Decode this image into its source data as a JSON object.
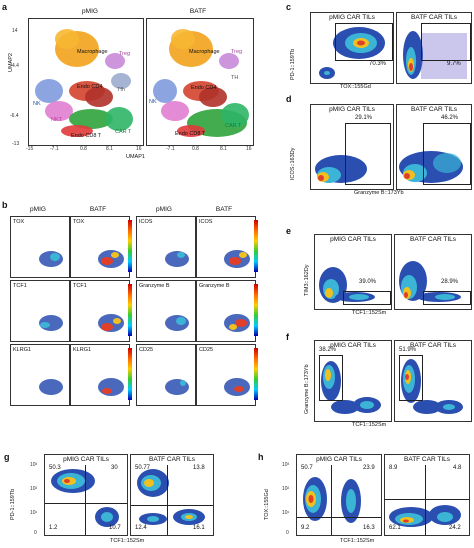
{
  "panels": {
    "a": {
      "letter": "a",
      "titles": [
        "pMIG",
        "BATF"
      ],
      "ylabel": "UMAP2",
      "xlabel": "UMAP1",
      "yticks": [
        "14",
        "4.4",
        "-6.4",
        "-13"
      ],
      "xticks": [
        "-15",
        "-7.1",
        "0.8",
        "8.1",
        "16"
      ],
      "xticks2": [
        "-7.1",
        "0.8",
        "8.1",
        "16"
      ],
      "clusters": {
        "macrophage": "Macrophage",
        "treg": "Treg",
        "endo_cd4": "Endo CD4",
        "tfh": "Tfh",
        "nk": "NK",
        "nkt": "NKT",
        "endo_cd8": "Endo CD8 T",
        "car_t": "CAR T",
        "th": "TH"
      }
    },
    "b": {
      "letter": "b",
      "col_titles": [
        "pMIG",
        "BATF",
        "pMIG",
        "BATF"
      ],
      "rows": [
        [
          "TOX",
          "TOX",
          "ICOS",
          "ICOS"
        ],
        [
          "TCF1",
          "TCF1",
          "Granzyme B",
          "Granzyme B"
        ],
        [
          "KLRG1",
          "KLRG1",
          "CD25",
          "CD25"
        ]
      ]
    },
    "c": {
      "letter": "c",
      "titles": [
        "pMIG CAR TILs",
        "BATF CAR TILs"
      ],
      "ylabel": "PD-1::159Tb",
      "xlabel": "TOX::155Gd",
      "percents": [
        "70.3%",
        "9.7%"
      ]
    },
    "d": {
      "letter": "d",
      "titles": [
        "pMIG CAR TILs",
        "BATF CAR TILs"
      ],
      "ylabel": "ICOS::163Dy",
      "xlabel": "Granzyme B::173Yb",
      "percents": [
        "29.1%",
        "46.2%"
      ]
    },
    "e": {
      "letter": "e",
      "titles": [
        "pMIG CAR TILs",
        "BATF CAR TILs"
      ],
      "ylabel": "TIM3::162Dy",
      "xlabel": "TCF1::152Sm",
      "percents": [
        "39.0%",
        "28.9%"
      ]
    },
    "f": {
      "letter": "f",
      "titles": [
        "pMIG CAR TILs",
        "BATF CAR TILs"
      ],
      "ylabel": "Granzyme B::173Yb",
      "xlabel": "TCF1::152Sm",
      "percents": [
        "38.2%",
        "51.9%"
      ]
    },
    "g": {
      "letter": "g",
      "titles": [
        "pMIG CAR TILs",
        "BATF CAR TILs"
      ],
      "ylabel": "PD-1::159Tb",
      "xlabel": "TCF1::152Sm",
      "quads_left": [
        "50.3",
        "30",
        "1.2",
        "10.7"
      ],
      "quads_right": [
        "50.77",
        "13.8",
        "12.4",
        "16.1"
      ]
    },
    "h": {
      "letter": "h",
      "titles": [
        "pMIG CAR TILs",
        "BATF CAR TILs"
      ],
      "ylabel": "TOX::155Gd",
      "xlabel": "TCF1::152Sm",
      "quads_left": [
        "50.7",
        "23.9",
        "9.2",
        "16.3"
      ],
      "quads_right": [
        "8.9",
        "4.8",
        "62.1",
        "24.2"
      ]
    },
    "tick_labels": {
      "t0": "0",
      "t1": "10¹",
      "t2": "10²",
      "t3": "10³"
    }
  }
}
